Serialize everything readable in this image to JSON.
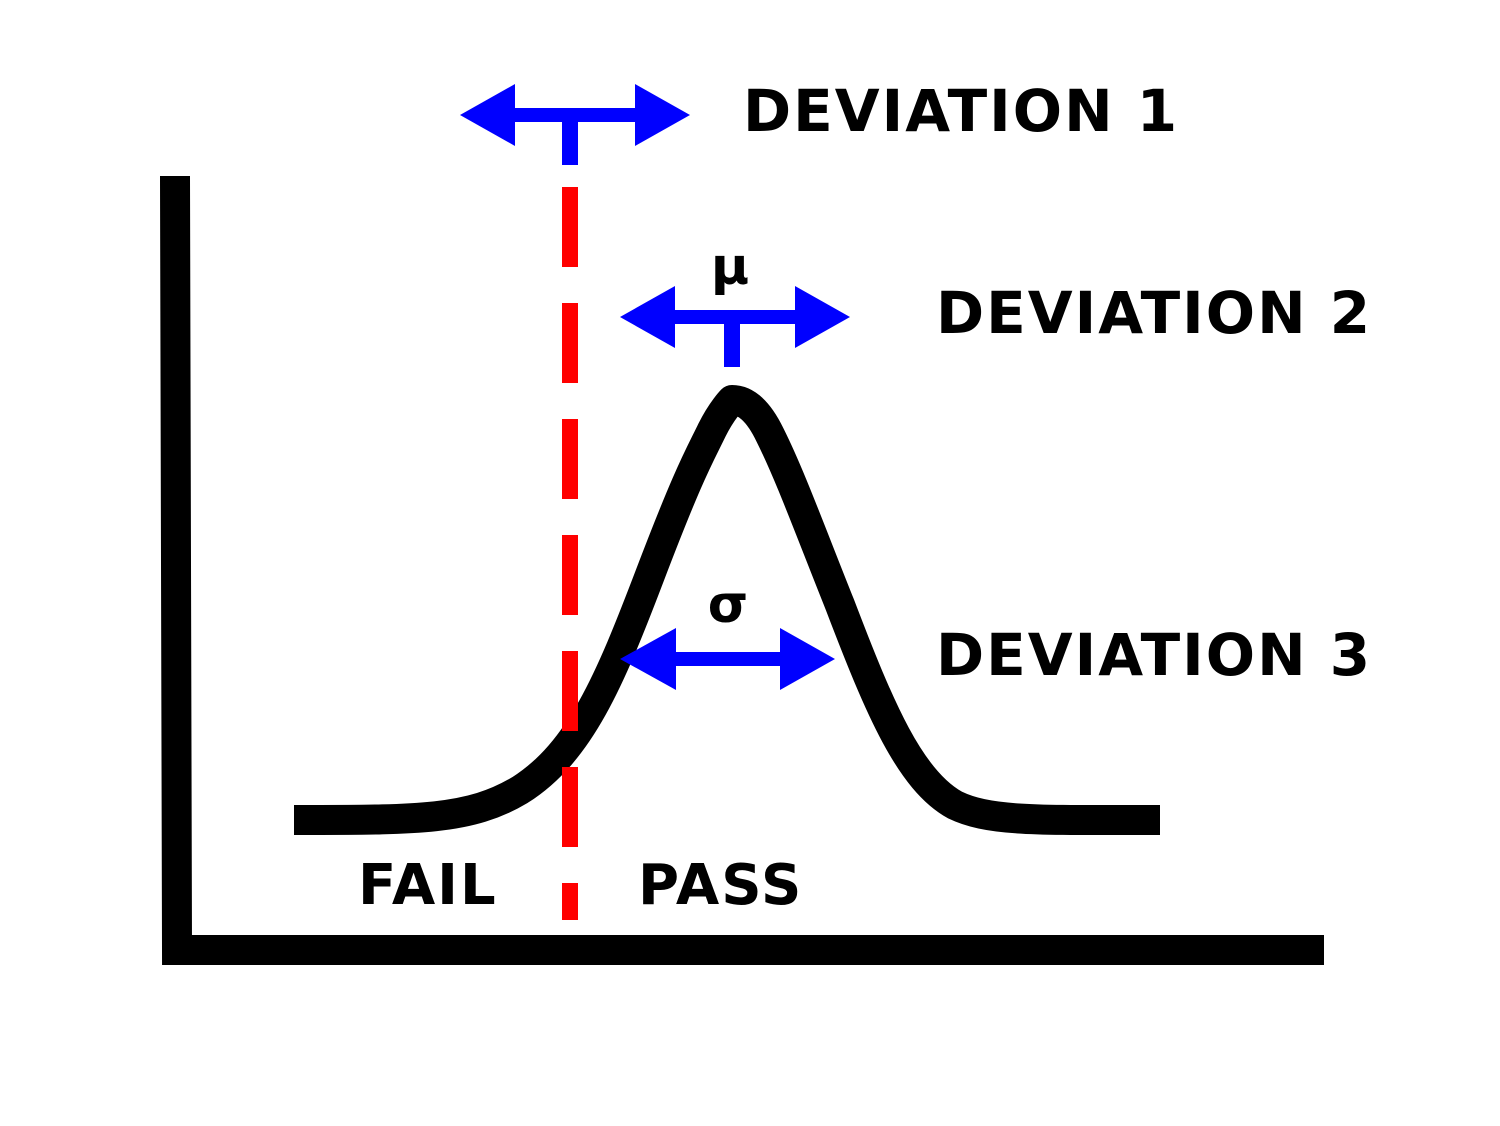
{
  "labels": {
    "deviation_1": "DEVIATION 1",
    "deviation_2": "DEVIATION 2",
    "deviation_3": "DEVIATION 3",
    "mu": "μ",
    "sigma": "σ",
    "fail": "FAIL",
    "pass": "PASS"
  },
  "colors": {
    "axes": "#000000",
    "curve": "#000000",
    "threshold": "#ff0000",
    "arrows": "#0000ff",
    "text": "#000000",
    "background": "#ffffff"
  },
  "icons": {
    "deviation_1_arrow": "double-headed-arrow-with-stem",
    "deviation_2_arrow": "double-headed-arrow-with-stem",
    "deviation_3_arrow": "double-headed-arrow"
  }
}
